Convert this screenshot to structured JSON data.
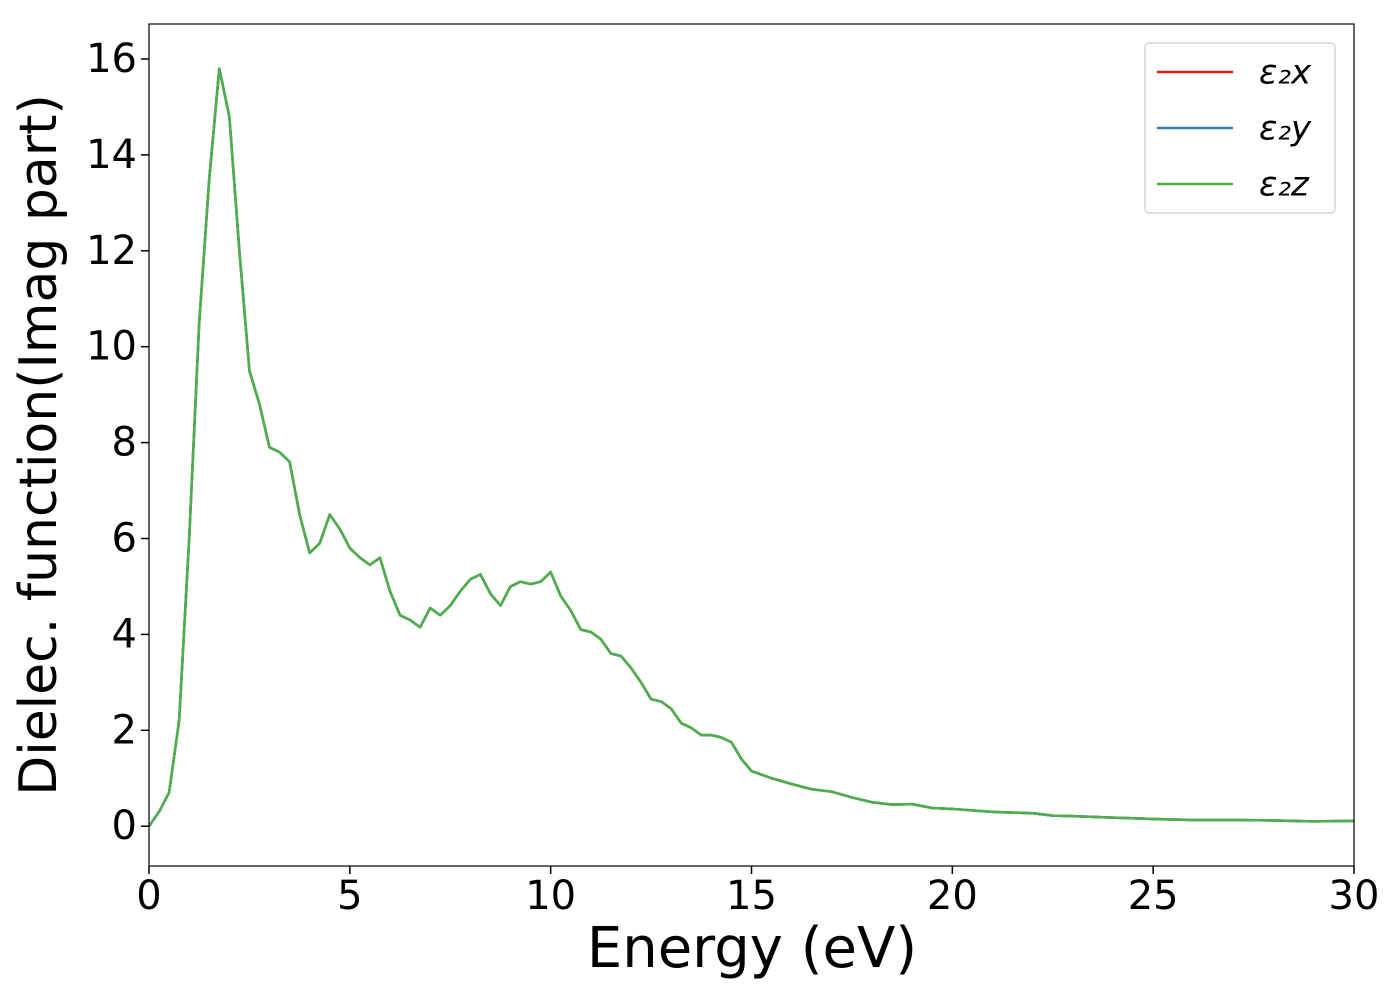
{
  "chart_data": {
    "type": "line",
    "xlabel": "Energy (eV)",
    "ylabel": "Dielec. function(Imag part)",
    "x": [
      0,
      0.25,
      0.5,
      0.75,
      1.0,
      1.25,
      1.5,
      1.75,
      2.0,
      2.25,
      2.5,
      2.75,
      3.0,
      3.25,
      3.5,
      3.75,
      4.0,
      4.25,
      4.5,
      4.75,
      5.0,
      5.25,
      5.5,
      5.75,
      6.0,
      6.25,
      6.5,
      6.75,
      7.0,
      7.25,
      7.5,
      7.75,
      8.0,
      8.25,
      8.5,
      8.75,
      9.0,
      9.25,
      9.5,
      9.75,
      10.0,
      10.25,
      10.5,
      10.75,
      11.0,
      11.25,
      11.5,
      11.75,
      12.0,
      12.25,
      12.5,
      12.75,
      13.0,
      13.25,
      13.5,
      13.75,
      14.0,
      14.25,
      14.5,
      14.75,
      15.0,
      15.5,
      16,
      16.5,
      17,
      17.5,
      18,
      18.5,
      19,
      19.5,
      20,
      21,
      22,
      22.5,
      23,
      24,
      25,
      26,
      27,
      28,
      29,
      30
    ],
    "series": [
      {
        "name": "ε₂x",
        "color": "#e41a1c",
        "values": [
          0,
          0.3,
          0.7,
          2.2,
          6.0,
          10.5,
          13.5,
          15.8,
          14.8,
          12.0,
          9.5,
          8.8,
          7.9,
          7.8,
          7.6,
          6.5,
          5.7,
          5.9,
          6.5,
          6.2,
          5.8,
          5.6,
          5.45,
          5.6,
          4.9,
          4.4,
          4.3,
          4.15,
          4.55,
          4.4,
          4.6,
          4.9,
          5.15,
          5.25,
          4.85,
          4.6,
          5.0,
          5.1,
          5.05,
          5.1,
          5.3,
          4.8,
          4.5,
          4.1,
          4.05,
          3.9,
          3.6,
          3.55,
          3.3,
          3.0,
          2.65,
          2.6,
          2.45,
          2.15,
          2.05,
          1.9,
          1.9,
          1.85,
          1.75,
          1.4,
          1.15,
          1.0,
          0.88,
          0.77,
          0.72,
          0.6,
          0.5,
          0.45,
          0.46,
          0.38,
          0.36,
          0.3,
          0.27,
          0.22,
          0.21,
          0.18,
          0.15,
          0.13,
          0.13,
          0.12,
          0.1,
          0.11
        ]
      },
      {
        "name": "ε₂y",
        "color": "#377eb8",
        "values": [
          0,
          0.3,
          0.7,
          2.2,
          6.0,
          10.5,
          13.5,
          15.8,
          14.8,
          12.0,
          9.5,
          8.8,
          7.9,
          7.8,
          7.6,
          6.5,
          5.7,
          5.9,
          6.5,
          6.2,
          5.8,
          5.6,
          5.45,
          5.6,
          4.9,
          4.4,
          4.3,
          4.15,
          4.55,
          4.4,
          4.6,
          4.9,
          5.15,
          5.25,
          4.85,
          4.6,
          5.0,
          5.1,
          5.05,
          5.1,
          5.3,
          4.8,
          4.5,
          4.1,
          4.05,
          3.9,
          3.6,
          3.55,
          3.3,
          3.0,
          2.65,
          2.6,
          2.45,
          2.15,
          2.05,
          1.9,
          1.9,
          1.85,
          1.75,
          1.4,
          1.15,
          1.0,
          0.88,
          0.77,
          0.72,
          0.6,
          0.5,
          0.45,
          0.46,
          0.38,
          0.36,
          0.3,
          0.27,
          0.22,
          0.21,
          0.18,
          0.15,
          0.13,
          0.13,
          0.12,
          0.1,
          0.11
        ]
      },
      {
        "name": "ε₂z",
        "color": "#4daf4a",
        "values": [
          0,
          0.3,
          0.7,
          2.2,
          6.0,
          10.5,
          13.5,
          15.8,
          14.8,
          12.0,
          9.5,
          8.8,
          7.9,
          7.8,
          7.6,
          6.5,
          5.7,
          5.9,
          6.5,
          6.2,
          5.8,
          5.6,
          5.45,
          5.6,
          4.9,
          4.4,
          4.3,
          4.15,
          4.55,
          4.4,
          4.6,
          4.9,
          5.15,
          5.25,
          4.85,
          4.6,
          5.0,
          5.1,
          5.05,
          5.1,
          5.3,
          4.8,
          4.5,
          4.1,
          4.05,
          3.9,
          3.6,
          3.55,
          3.3,
          3.0,
          2.65,
          2.6,
          2.45,
          2.15,
          2.05,
          1.9,
          1.9,
          1.85,
          1.75,
          1.4,
          1.15,
          1.0,
          0.88,
          0.77,
          0.72,
          0.6,
          0.5,
          0.45,
          0.46,
          0.38,
          0.36,
          0.3,
          0.27,
          0.22,
          0.21,
          0.18,
          0.15,
          0.13,
          0.13,
          0.12,
          0.1,
          0.11
        ]
      }
    ],
    "xlim": [
      0,
      30
    ],
    "xticks": [
      0,
      5,
      10,
      15,
      20,
      25,
      30
    ],
    "ylim": [
      -0.83,
      16.73
    ],
    "yticks": [
      0,
      2,
      4,
      6,
      8,
      10,
      12,
      14,
      16
    ],
    "grid": false,
    "legend": "upper right"
  }
}
